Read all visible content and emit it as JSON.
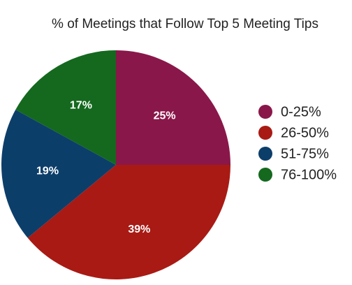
{
  "chart_data": {
    "type": "pie",
    "title": "% of Meetings that Follow Top 5 Meeting Tips",
    "categories": [
      "0-25%",
      "26-50%",
      "51-75%",
      "76-100%"
    ],
    "values": [
      25,
      39,
      19,
      17
    ],
    "value_labels": [
      "25%",
      "39%",
      "19%",
      "17%"
    ],
    "colors": [
      "#8a1749",
      "#a91a14",
      "#0c3e6a",
      "#14691e"
    ],
    "legend": "right"
  }
}
